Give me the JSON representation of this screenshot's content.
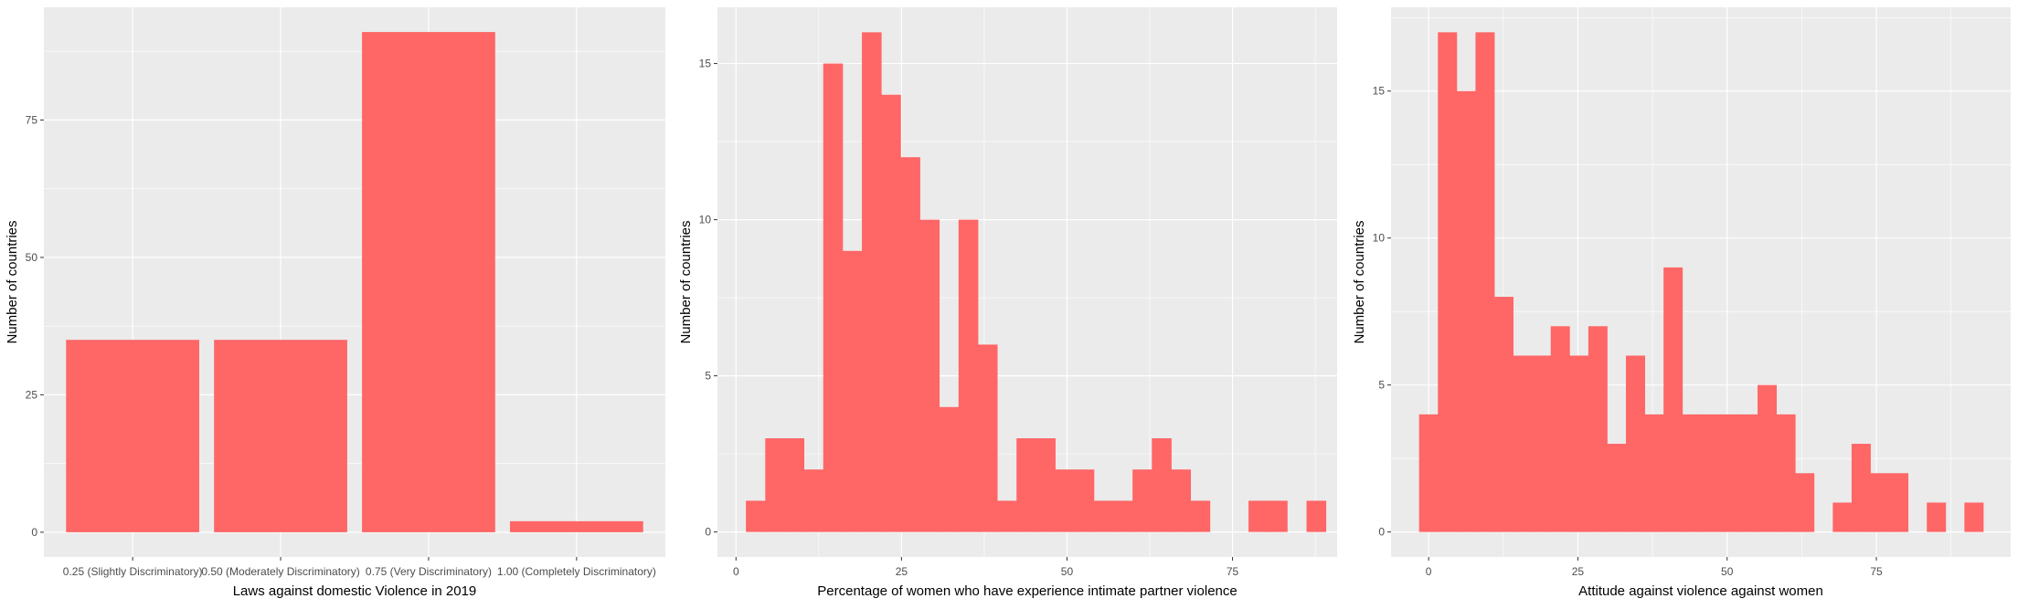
{
  "chart_data": [
    {
      "type": "bar",
      "title": "",
      "xlabel": "Laws against domestic Violence in 2019",
      "ylabel": "Number of countries",
      "categories": [
        "0.25 (Slightly Discriminatory)",
        "0.50 (Moderately Discriminatory)",
        "0.75 (Very Discriminatory)",
        "1.00 (Completely Discriminatory)"
      ],
      "values": [
        35,
        35,
        91,
        2
      ],
      "ylim": [
        -4.5,
        95.5
      ],
      "yticks": [
        0,
        25,
        50,
        75
      ],
      "grid": true,
      "bar_color": "#FF6666",
      "panel_bg": "#EBEBEB"
    },
    {
      "type": "histogram",
      "title": "",
      "xlabel": "Percentage of women who have experience intimate partner violence",
      "ylabel": "Number of countries",
      "bin_start": 1.5,
      "binwidth": 2.92,
      "counts": [
        1,
        3,
        3,
        2,
        15,
        9,
        16,
        14,
        12,
        10,
        4,
        10,
        6,
        1,
        3,
        3,
        2,
        2,
        1,
        1,
        2,
        3,
        2,
        1,
        0,
        0,
        1,
        1,
        0,
        1
      ],
      "xlim": [
        -2.8,
        90.8
      ],
      "ylim": [
        -0.8,
        16.8
      ],
      "xticks": [
        0,
        25,
        50,
        75
      ],
      "yticks": [
        0,
        5,
        10,
        15
      ],
      "grid": true,
      "bar_color": "#FF6666",
      "panel_bg": "#EBEBEB"
    },
    {
      "type": "histogram",
      "title": "",
      "xlabel": "Attitude against violence against women",
      "ylabel": "Number of countries",
      "bin_start": -1.6,
      "binwidth": 3.15,
      "counts": [
        4,
        17,
        15,
        17,
        8,
        6,
        6,
        7,
        6,
        7,
        3,
        6,
        4,
        9,
        4,
        4,
        4,
        4,
        5,
        4,
        2,
        0,
        1,
        3,
        2,
        2,
        0,
        1,
        0,
        1
      ],
      "xlim": [
        -6.3,
        97.5
      ],
      "ylim": [
        -0.85,
        17.85
      ],
      "xticks": [
        0,
        25,
        50,
        75
      ],
      "yticks": [
        0,
        5,
        10,
        15
      ],
      "grid": true,
      "bar_color": "#FF6666",
      "panel_bg": "#EBEBEB"
    }
  ]
}
